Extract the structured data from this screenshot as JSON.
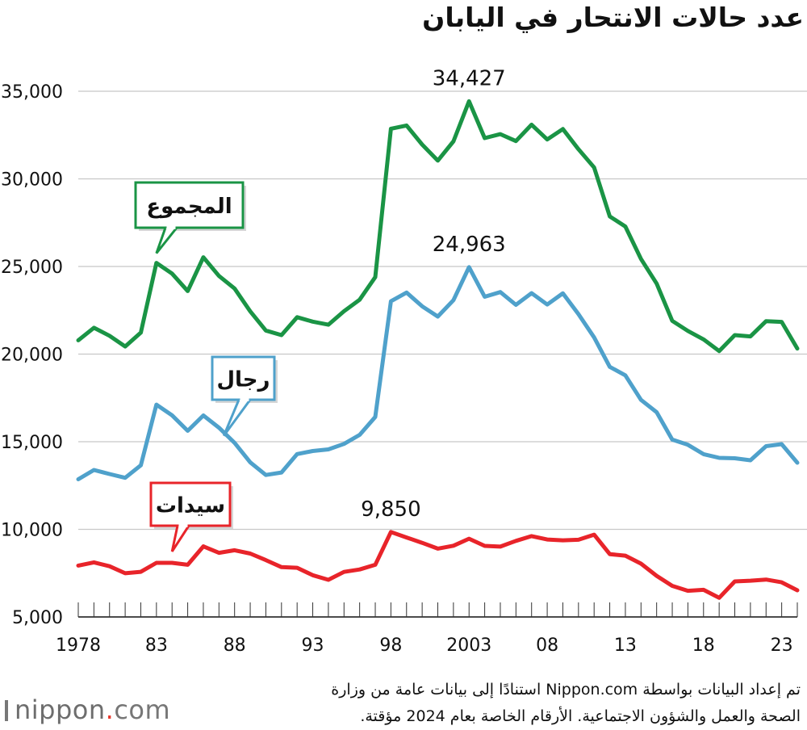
{
  "title": "عدد حالات الانتحار في اليابان",
  "footer": {
    "line1": "تم إعداد البيانات بواسطة Nippon.com استنادًا إلى بيانات عامة من وزارة",
    "line2": "الصحة والعمل والشؤون الاجتماعية. الأرقام الخاصة بعام 2024 مؤقتة.",
    "brand_pre": "nippon",
    "brand_dot": ".",
    "brand_post": "com"
  },
  "chart_data": {
    "type": "line",
    "title": "عدد حالات الانتحار في اليابان",
    "ylim": [
      5000,
      35000
    ],
    "yticks": [
      "5,000",
      "10,000",
      "15,000",
      "20,000",
      "25,000",
      "30,000",
      "35,000"
    ],
    "ytick_values": [
      5000,
      10000,
      15000,
      20000,
      25000,
      30000,
      35000
    ],
    "x": [
      1978,
      1979,
      1980,
      1981,
      1982,
      1983,
      1984,
      1985,
      1986,
      1987,
      1988,
      1989,
      1990,
      1991,
      1992,
      1993,
      1994,
      1995,
      1996,
      1997,
      1998,
      1999,
      2000,
      2001,
      2002,
      2003,
      2004,
      2005,
      2006,
      2007,
      2008,
      2009,
      2010,
      2011,
      2012,
      2013,
      2014,
      2015,
      2016,
      2017,
      2018,
      2019,
      2020,
      2021,
      2022,
      2023,
      2024
    ],
    "xlim": [
      1978,
      2024
    ],
    "xtick_values": [
      1978,
      1983,
      1988,
      1993,
      1998,
      2003,
      2008,
      2013,
      2018,
      2023
    ],
    "xtick_labels": [
      "1978",
      "83",
      "88",
      "93",
      "98",
      "2003",
      "08",
      "13",
      "18",
      "23"
    ],
    "grid": "horizontal",
    "series": [
      {
        "name": "المجموع",
        "color": "#1a9445",
        "values": [
          20788,
          21503,
          21048,
          20434,
          21228,
          25202,
          24596,
          23599,
          25524,
          24460,
          23742,
          22436,
          21346,
          21084,
          22104,
          21851,
          21679,
          22445,
          23104,
          24391,
          32863,
          33048,
          31957,
          31042,
          32143,
          34427,
          32325,
          32552,
          32155,
          33093,
          32249,
          32845,
          31690,
          30651,
          27858,
          27283,
          25427,
          24025,
          21897,
          21321,
          20840,
          20169,
          21081,
          21007,
          21881,
          21837,
          20320
        ]
      },
      {
        "name": "رجال",
        "color": "#4fa1cb",
        "values": [
          12859,
          13386,
          13155,
          12942,
          13654,
          17116,
          16508,
          15624,
          16497,
          15802,
          14934,
          13818,
          13102,
          13242,
          14296,
          14468,
          14560,
          14874,
          15393,
          16416,
          23013,
          23512,
          22727,
          22144,
          23080,
          24963,
          23272,
          23540,
          22813,
          23478,
          22831,
          23472,
          22283,
          20955,
          19273,
          18787,
          17386,
          16681,
          15121,
          14826,
          14290,
          14078,
          14055,
          13939,
          14746,
          14862,
          13801
        ]
      },
      {
        "name": "سيدات",
        "color": "#e8242a",
        "values": [
          7929,
          8117,
          7893,
          7492,
          7574,
          8086,
          8088,
          7975,
          9027,
          8658,
          8808,
          8618,
          8244,
          7842,
          7808,
          7383,
          7119,
          7571,
          7711,
          7975,
          9850,
          9536,
          9230,
          8898,
          9063,
          9464,
          9053,
          9012,
          9342,
          9615,
          9418,
          9373,
          9407,
          9696,
          8585,
          8496,
          8041,
          7344,
          6776,
          6495,
          6550,
          6091,
          7026,
          7068,
          7135,
          6975,
          6519
        ]
      }
    ],
    "annotations": [
      {
        "text": "34,427",
        "series": 0,
        "x": 2003
      },
      {
        "text": "24,963",
        "series": 1,
        "x": 2003
      },
      {
        "text": "9,850",
        "series": 2,
        "x": 1998
      }
    ],
    "legend_placement": "callouts"
  }
}
